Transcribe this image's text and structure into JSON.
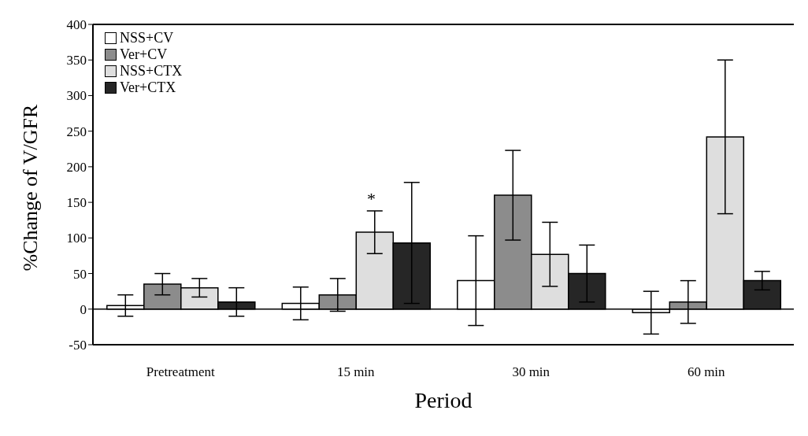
{
  "chart_data": {
    "type": "bar",
    "xlabel": "Period",
    "ylabel": "%Change of  V/GFR",
    "categories": [
      "Pretreatment",
      "15 min",
      "30 min",
      "60 min"
    ],
    "series": [
      {
        "name": "NSS+CV",
        "color": "#ffffff",
        "values": [
          5,
          8,
          40,
          -5
        ],
        "errors": [
          15,
          23,
          63,
          30
        ]
      },
      {
        "name": "Ver+CV",
        "color": "#8c8c8c",
        "values": [
          35,
          20,
          160,
          10
        ],
        "errors": [
          15,
          23,
          63,
          30
        ]
      },
      {
        "name": "NSS+CTX",
        "color": "#dedede",
        "values": [
          30,
          108,
          77,
          242
        ],
        "errors": [
          13,
          30,
          45,
          108
        ]
      },
      {
        "name": "Ver+CTX",
        "color": "#262626",
        "values": [
          10,
          93,
          50,
          40
        ],
        "errors": [
          20,
          85,
          40,
          13
        ]
      }
    ],
    "ylim": [
      -50,
      400
    ],
    "yticks": [
      -50,
      0,
      50,
      100,
      150,
      200,
      250,
      300,
      350,
      400
    ],
    "grid": false,
    "legend": "top left",
    "ref_lines": [
      {
        "axis": "y",
        "value": 0,
        "color": "#000000"
      }
    ],
    "annotations": [
      "*"
    ]
  }
}
